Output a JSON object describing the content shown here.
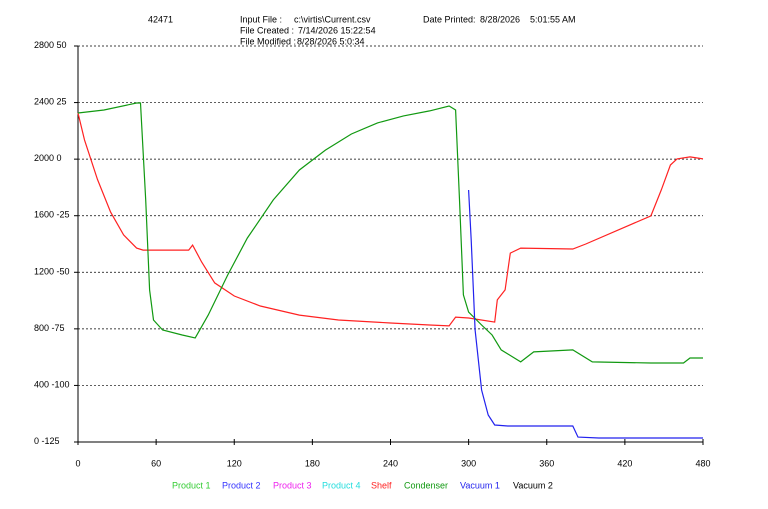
{
  "header": {
    "id": "42471",
    "input_file_label": "Input File :",
    "input_file": "c:\\virtis\\Current.csv",
    "created_label": "File Created :",
    "created": "7/14/2026 15:22:54",
    "modified_label": "File Modified :",
    "modified": "8/28/2026 5:0:34",
    "printed_label": "Date Printed:",
    "printed_date": "8/28/2026",
    "printed_time": "5:01:55 AM"
  },
  "chart_data": {
    "type": "line",
    "xlim": [
      0,
      480
    ],
    "xticks": [
      0,
      60,
      120,
      180,
      240,
      300,
      360,
      420,
      480
    ],
    "ylim": [
      -125,
      50
    ],
    "yticks": [
      50,
      25,
      0,
      -25,
      -50,
      -75,
      -100,
      -125
    ],
    "y2lim": [
      0,
      2800
    ],
    "y2ticks": [
      2800,
      2400,
      2000,
      1600,
      1200,
      800,
      400,
      0
    ],
    "grid": true,
    "series": [
      {
        "name": "Product 1",
        "color": "#33cc33",
        "x": [],
        "values": []
      },
      {
        "name": "Product 2",
        "color": "#3333ff",
        "x": [],
        "values": []
      },
      {
        "name": "Product 3",
        "color": "#ee22ee",
        "x": [],
        "values": []
      },
      {
        "name": "Product 4",
        "color": "#22dddd",
        "x": [],
        "values": []
      },
      {
        "name": "Shelf",
        "color": "#ff2222",
        "x": [
          0,
          5,
          15,
          25,
          35,
          45,
          50,
          85,
          88,
          95,
          105,
          120,
          140,
          170,
          200,
          240,
          270,
          285,
          290,
          300,
          320,
          322,
          328,
          332,
          340,
          380,
          390,
          440,
          448,
          455,
          460,
          470,
          480
        ],
        "values": [
          20.4,
          8.5,
          -9,
          -23.4,
          -33.5,
          -39.3,
          -40.2,
          -40.2,
          -38,
          -45.5,
          -54.7,
          -60.5,
          -64.9,
          -68.9,
          -71.1,
          -72.4,
          -73.3,
          -73.7,
          -69.8,
          -70.2,
          -72,
          -62.2,
          -57.8,
          -41.5,
          -39.3,
          -39.7,
          -37.5,
          -25.1,
          -13.6,
          -2.6,
          0.1,
          1,
          0.1
        ]
      },
      {
        "name": "Condenser",
        "color": "#119911",
        "x": [
          0,
          20,
          45,
          48,
          52,
          55,
          58,
          65,
          80,
          90,
          100,
          115,
          130,
          150,
          170,
          190,
          210,
          230,
          250,
          270,
          285,
          290,
          293,
          296,
          300,
          310,
          318,
          325,
          340,
          350,
          380,
          395,
          440,
          465,
          470,
          480
        ],
        "values": [
          20.4,
          21.7,
          24.8,
          24.8,
          -18,
          -57.8,
          -71.1,
          -75.5,
          -77.7,
          -79,
          -68.9,
          -51.2,
          -34.9,
          -18,
          -4.8,
          4,
          11.1,
          16,
          19.1,
          21.3,
          23.5,
          21.7,
          -18,
          -60,
          -67.6,
          -73.3,
          -77.7,
          -84.3,
          -89.6,
          -85.2,
          -84.3,
          -89.6,
          -90.1,
          -90.1,
          -87.9,
          -87.9
        ]
      },
      {
        "name": "Vacuum 1",
        "color": "#2222ee",
        "axis": "y2",
        "x": [
          300,
          302,
          305,
          310,
          315,
          320,
          330,
          380,
          384,
          400,
          480
        ],
        "values": [
          1782,
          1428,
          792,
          368,
          191,
          120,
          113,
          113,
          35,
          28,
          28
        ]
      },
      {
        "name": "Vacuum 2",
        "color": "#000000",
        "x": [],
        "values": []
      }
    ]
  }
}
